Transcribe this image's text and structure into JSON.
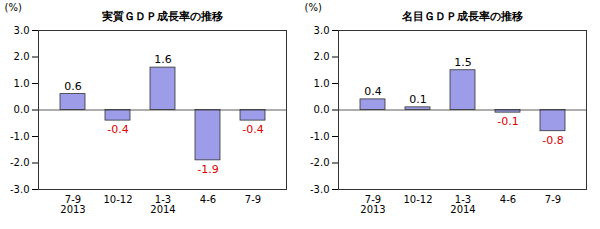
{
  "chart_data": [
    {
      "type": "bar",
      "title": "実質ＧＤＰ成長率の推移",
      "ylabel": "(%)",
      "categories": [
        "7-9\n2013",
        "10-12",
        "1-3\n2014",
        "4-6",
        "7-9"
      ],
      "values": [
        0.6,
        -0.4,
        1.6,
        -1.9,
        -0.4
      ],
      "color": "#9c9ce8",
      "ylim": [
        -3,
        3
      ],
      "yticks": [
        {
          "value": 3,
          "label": "3.0"
        },
        {
          "value": 2,
          "label": "2.0"
        },
        {
          "value": 1,
          "label": "1.0"
        },
        {
          "value": 0,
          "label": "0.0"
        },
        {
          "value": -1,
          "label": "-1.0"
        },
        {
          "value": -2,
          "label": "-2.0"
        },
        {
          "value": -3,
          "label": "-3.0"
        }
      ],
      "grid": false,
      "data_labels": true
    },
    {
      "type": "bar",
      "title": "名目ＧＤＰ成長率の推移",
      "ylabel": "(%)",
      "categories": [
        "7-9\n2013",
        "10-12",
        "1-3\n2014",
        "4-6",
        "7-9"
      ],
      "values": [
        0.4,
        0.1,
        1.5,
        -0.1,
        -0.8
      ],
      "color": "#9c9ce8",
      "ylim": [
        -3,
        3
      ],
      "yticks": [
        {
          "value": 3,
          "label": "3.0"
        },
        {
          "value": 2,
          "label": "2.0"
        },
        {
          "value": 1,
          "label": "1.0"
        },
        {
          "value": 0,
          "label": "0.0"
        },
        {
          "value": -1,
          "label": "-1.0"
        },
        {
          "value": -2,
          "label": "-2.0"
        },
        {
          "value": -3,
          "label": "-3.0"
        }
      ],
      "grid": false,
      "data_labels": true
    }
  ]
}
